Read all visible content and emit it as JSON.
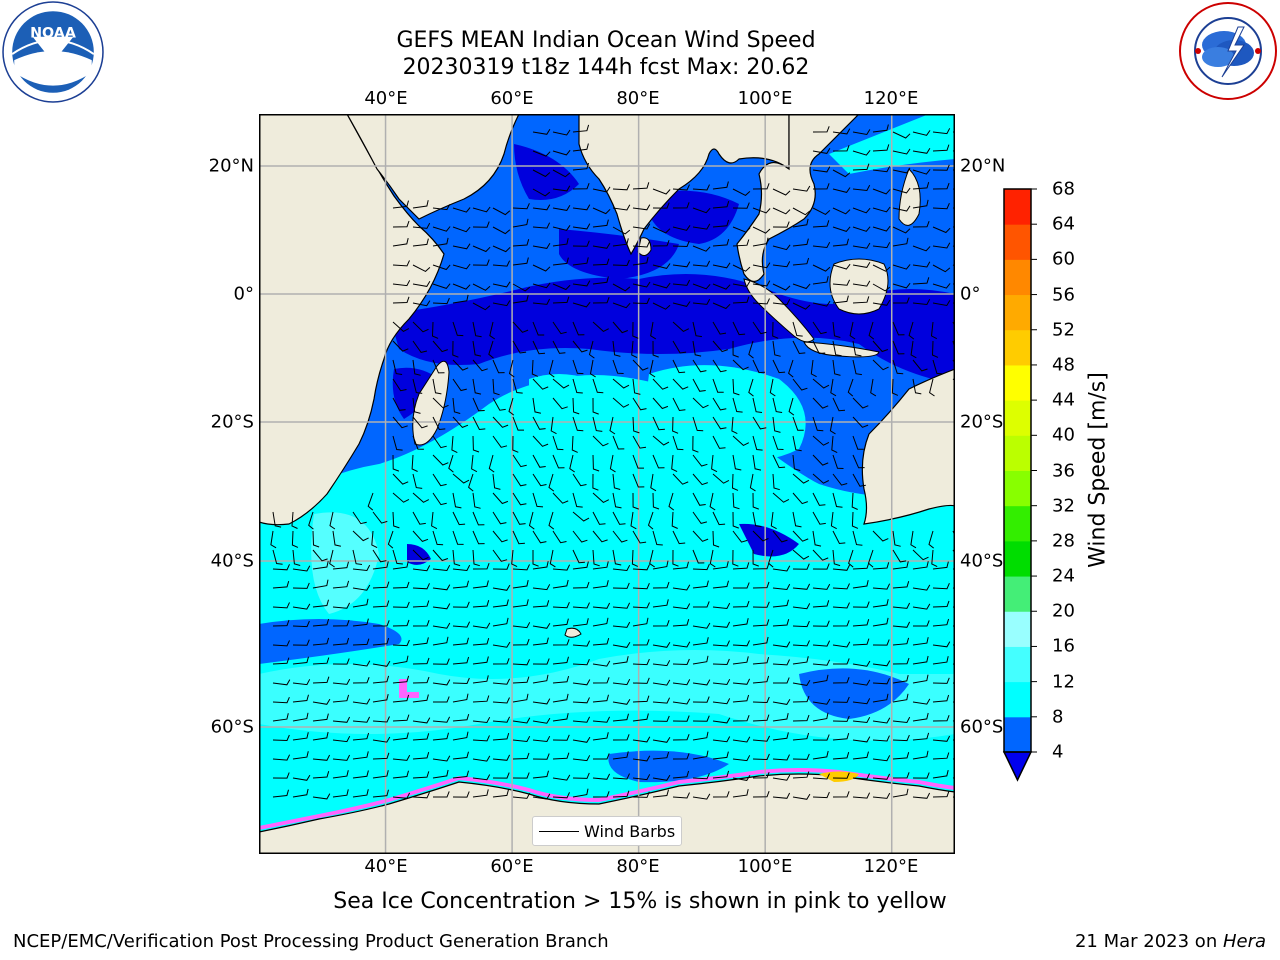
{
  "title": {
    "line1": "GEFS MEAN Indian Ocean Wind Speed",
    "line2": "20230319 t18z 144h fcst   Max: 20.62"
  },
  "logos": {
    "noaa": {
      "name": "noaa-logo",
      "text": "NOAA",
      "ring_text": "NATIONAL OCEANIC AND ATMOSPHERIC ADMINISTRATION · U.S. DEPARTMENT OF COMMERCE"
    },
    "nws": {
      "name": "nws-logo",
      "ring_text": "NATIONAL WEATHER SERVICE"
    }
  },
  "map": {
    "projection": "lat-lon",
    "lon_range": [
      20,
      130
    ],
    "lat_range": [
      -76,
      28
    ],
    "lon_ticks": [
      "40°E",
      "60°E",
      "80°E",
      "100°E",
      "120°E"
    ],
    "lon_tick_values": [
      40,
      60,
      80,
      100,
      120
    ],
    "lat_ticks": [
      "20°N",
      "0°",
      "20°S",
      "40°S",
      "60°S"
    ],
    "lat_tick_values": [
      20,
      0,
      -20,
      -40,
      -60
    ],
    "grid": true,
    "colors": {
      "land": "#efecdc",
      "ocean_4_8": "#0066ff",
      "ocean_below_4": "#0000dd",
      "ocean_8_12": "#00ffff",
      "ocean_12_16": "#44ffff",
      "sea_ice": "#ff66ff",
      "grid": "#b0b0b0"
    }
  },
  "legend": {
    "label": "Wind Barbs",
    "icon": "wind-barb-line"
  },
  "colorbar": {
    "title": "Wind Speed [m/s]",
    "ticks": [
      "4",
      "8",
      "12",
      "16",
      "20",
      "24",
      "28",
      "32",
      "36",
      "40",
      "44",
      "48",
      "52",
      "56",
      "60",
      "64",
      "68"
    ],
    "levels": [
      4,
      8,
      12,
      16,
      20,
      24,
      28,
      32,
      36,
      40,
      44,
      48,
      52,
      56,
      60,
      64,
      68
    ],
    "colors": [
      "#0066ff",
      "#00ffff",
      "#44ffff",
      "#99ffff",
      "#44ee77",
      "#00dd00",
      "#33ee00",
      "#88ff00",
      "#bbff00",
      "#ddff00",
      "#ffff00",
      "#ffcc00",
      "#ffaa00",
      "#ff8800",
      "#ff5500",
      "#ff2200"
    ],
    "extend_min_color": "#0000ee"
  },
  "note": "Sea Ice Concentration > 15% is shown in pink to yellow",
  "footer": {
    "left": "NCEP/EMC/Verification Post Processing Product Generation Branch",
    "date": "21 Mar 2023 on ",
    "machine": "Hera"
  }
}
